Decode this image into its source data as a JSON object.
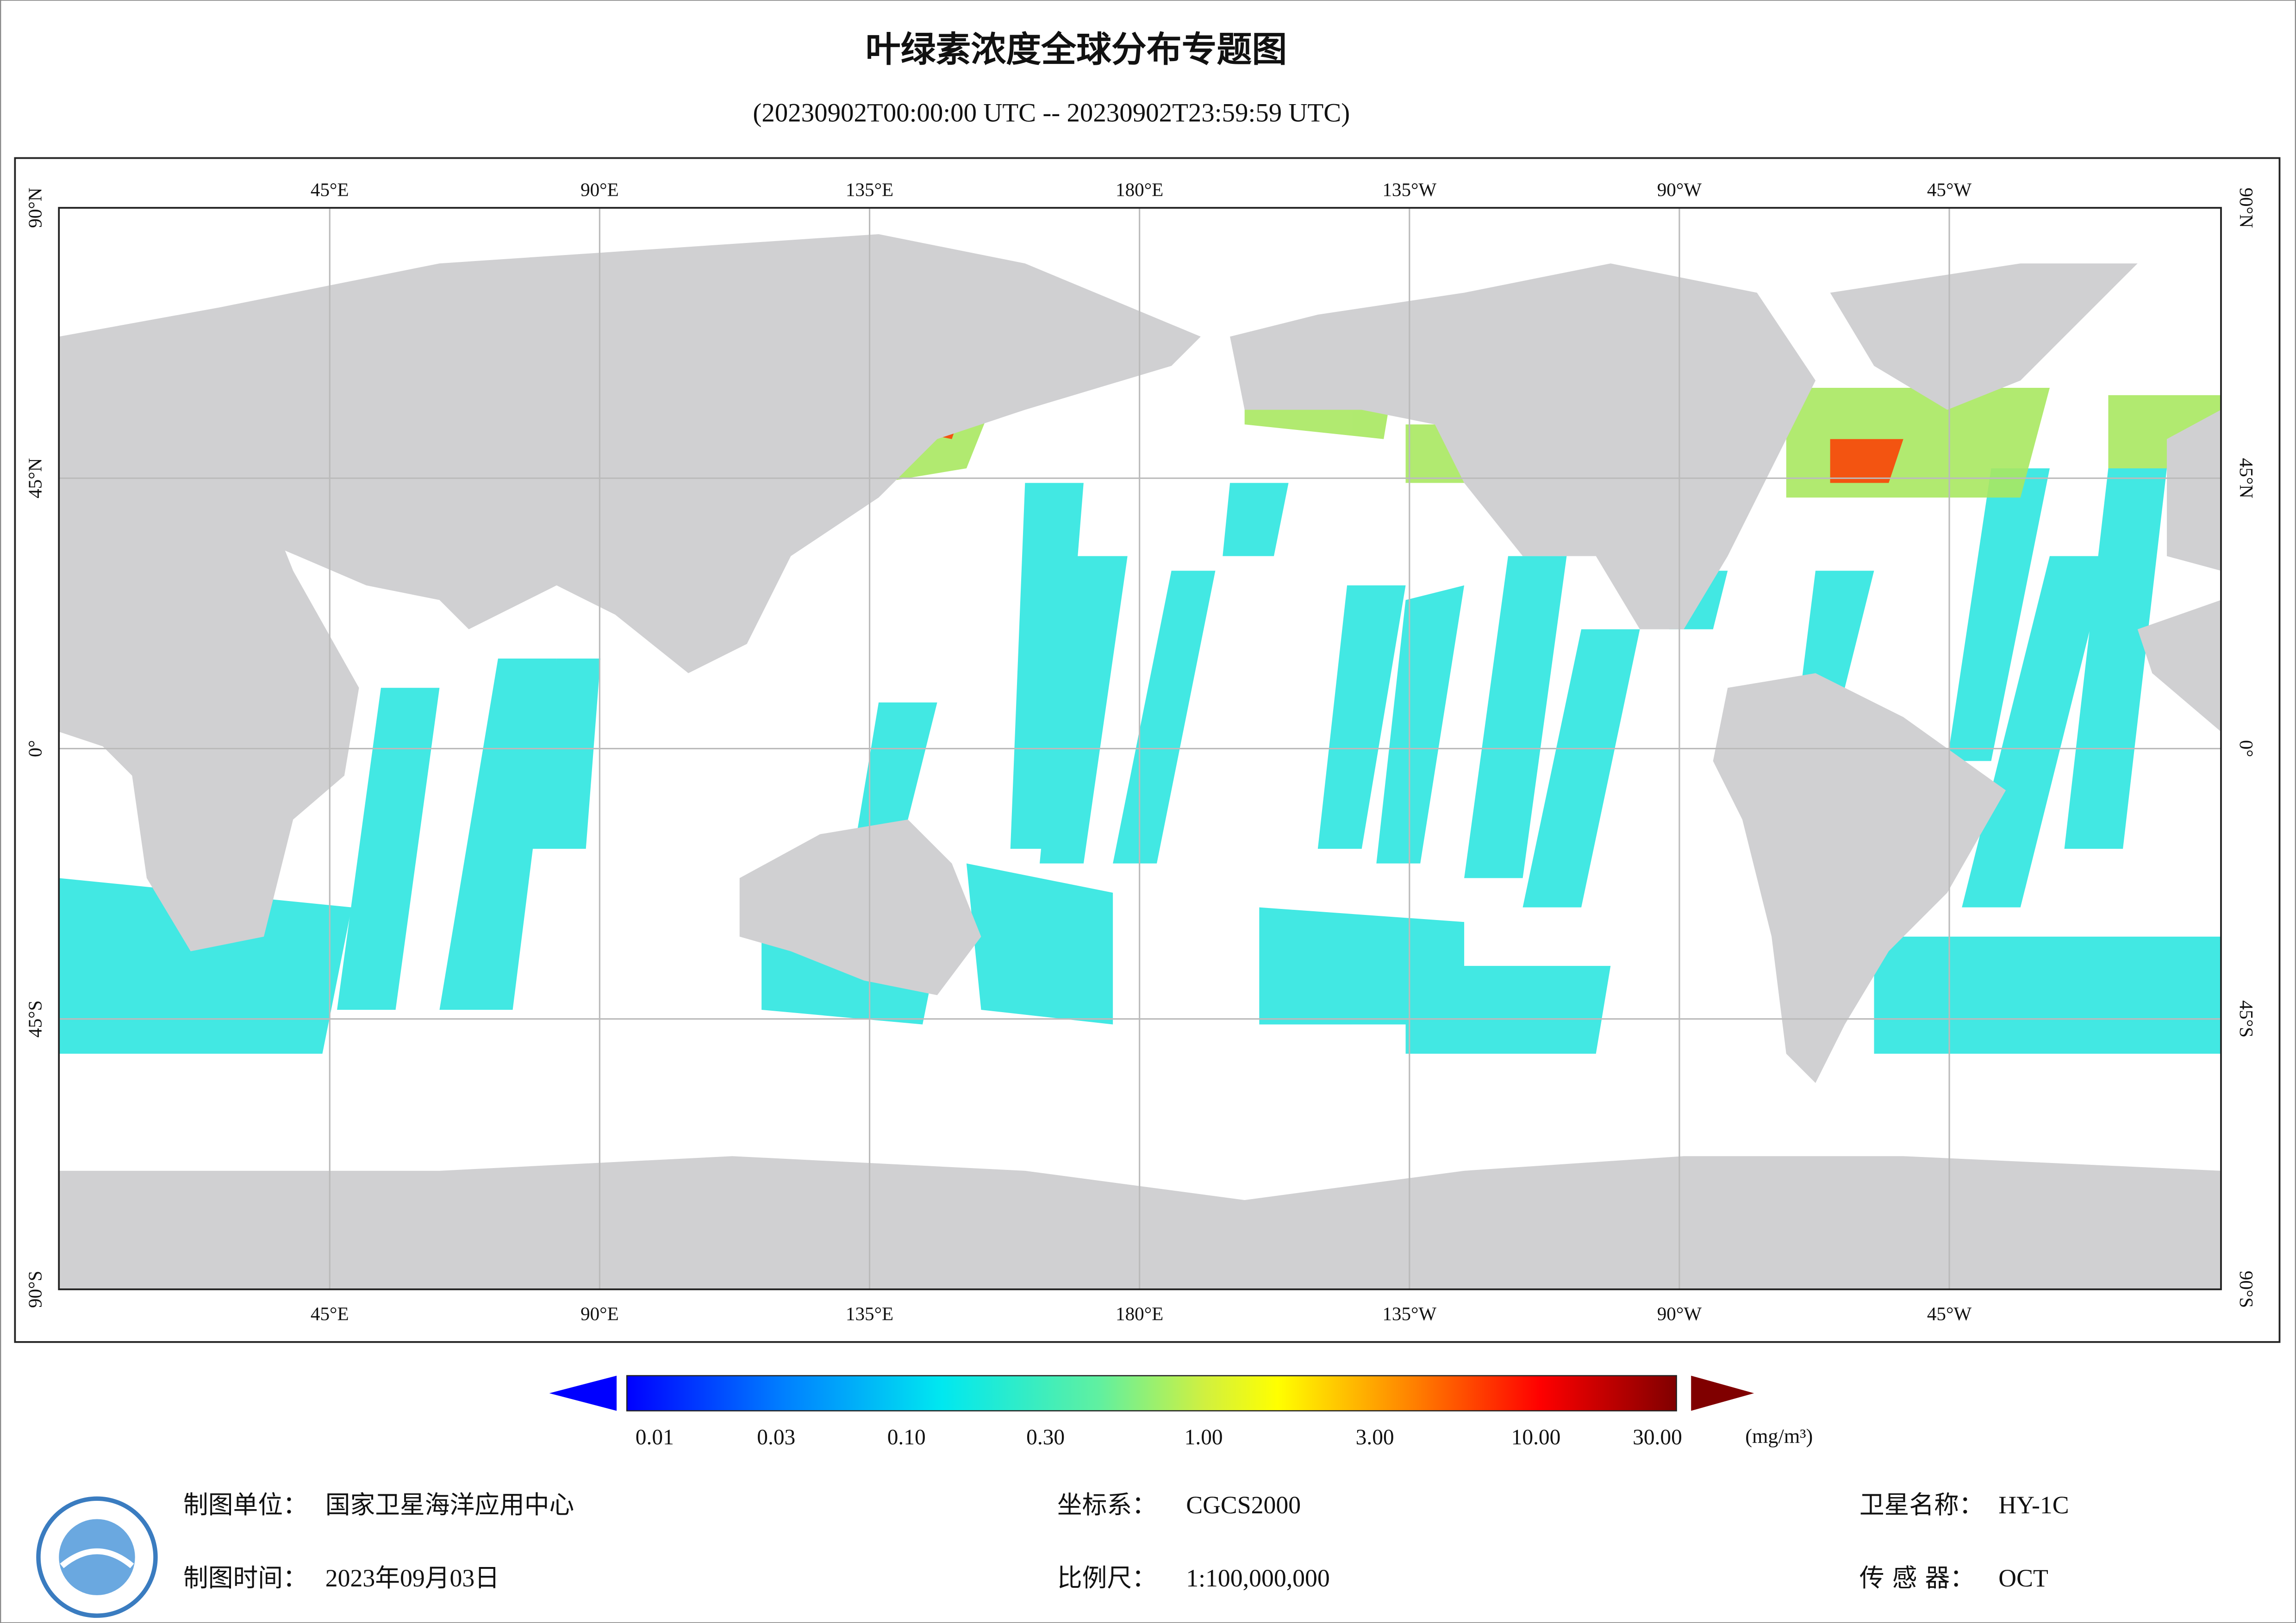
{
  "header": {
    "title": "叶绿素浓度全球分布专题图",
    "subtitle": "(20230902T00:00:00 UTC -- 20230902T23:59:59 UTC)"
  },
  "map": {
    "lon_labels": [
      "45°E",
      "90°E",
      "135°E",
      "180°E",
      "135°W",
      "90°W",
      "45°W"
    ],
    "lat_labels": [
      "90°N",
      "45°N",
      "0°",
      "45°S",
      "90°S"
    ]
  },
  "colorbar": {
    "labels": [
      "0.01",
      "0.03",
      "0.10",
      "0.30",
      "1.00",
      "3.00",
      "10.00",
      "30.00"
    ],
    "unit": "(mg/m³)"
  },
  "footer": {
    "items": [
      {
        "label": "制图单位：",
        "value": "国家卫星海洋应用中心"
      },
      {
        "label": "坐标系：",
        "value": "CGCS2000"
      },
      {
        "label": "卫星名称：",
        "value": "HY-1C"
      },
      {
        "label": "制图时间：",
        "value": "2023年09月03日"
      },
      {
        "label": "比例尺：",
        "value": "1:100,000,000"
      },
      {
        "label": "传 感 器：",
        "value": "OCT"
      }
    ]
  }
}
